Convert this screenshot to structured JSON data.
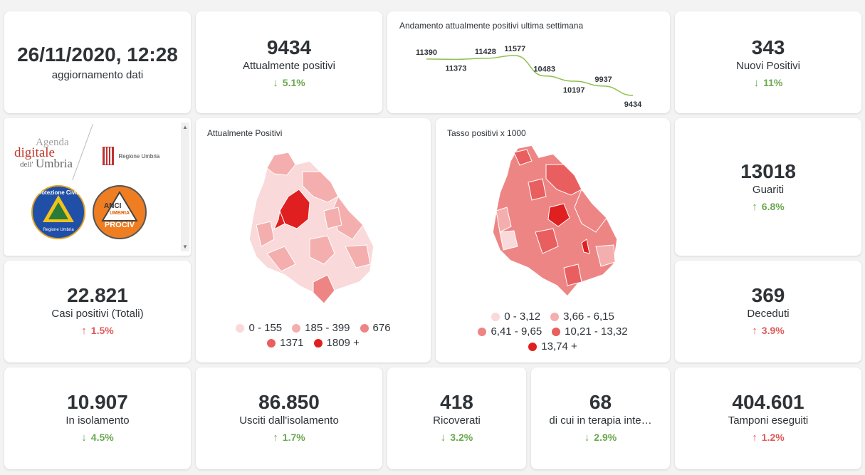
{
  "date_card": {
    "datetime": "26/11/2020, 12:28",
    "label": "aggiornamento dati"
  },
  "kpis": {
    "attualmente_positivi": {
      "value": "9434",
      "label": "Attualmente positivi",
      "delta": "5.1%",
      "arrow": "↓"
    },
    "nuovi_positivi": {
      "value": "343",
      "label": "Nuovi Positivi",
      "delta": "11%",
      "arrow": "↓"
    },
    "guariti": {
      "value": "13018",
      "label": "Guariti",
      "delta": "6.8%",
      "arrow": "↑"
    },
    "casi_totali": {
      "value": "22.821",
      "label": "Casi positivi (Totali)",
      "delta": "1.5%",
      "arrow": "↑"
    },
    "deceduti": {
      "value": "369",
      "label": "Deceduti",
      "delta": "3.9%",
      "arrow": "↑"
    },
    "isolamento": {
      "value": "10.907",
      "label": "In isolamento",
      "delta": "4.5%",
      "arrow": "↓"
    },
    "usciti": {
      "value": "86.850",
      "label": "Usciti dall'isolamento",
      "delta": "1.7%",
      "arrow": "↑"
    },
    "ricoverati": {
      "value": "418",
      "label": "Ricoverati",
      "delta": "3.2%",
      "arrow": "↓"
    },
    "terapia": {
      "value": "68",
      "label": "di cui in terapia inte…",
      "delta": "2.9%",
      "arrow": "↓"
    },
    "tamponi": {
      "value": "404.601",
      "label": "Tamponi eseguiti",
      "delta": "1.2%",
      "arrow": "↑"
    }
  },
  "trend": {
    "title": "Andamento attualmente positivi ultima settimana",
    "values": [
      11390,
      11373,
      11428,
      11577,
      10483,
      10197,
      9937,
      9434
    ],
    "labels": [
      "11390",
      "11373",
      "11428",
      "11577",
      "10483",
      "10197",
      "9937",
      "9434"
    ],
    "color": "#8fc04f"
  },
  "logos": {
    "agenda_line1": "Agenda",
    "agenda_line2": "digitale",
    "agenda_line3_small": "dell'",
    "agenda_line3": "Umbria",
    "regione": "Regione Umbria",
    "protezione": "Protezione Civile",
    "protezione_sub": "Regione Umbria",
    "anci_top": "ANCI",
    "anci_mid": "UMBRIA",
    "anci_bottom": "PROCIV"
  },
  "map_positivi": {
    "title": "Attualmente Positivi",
    "legend": [
      {
        "label": "0 - 155",
        "color": "#f9d9d9"
      },
      {
        "label": "185 - 399",
        "color": "#f4aeae"
      },
      {
        "label": "676",
        "color": "#ee8585"
      },
      {
        "label": "1371",
        "color": "#e95f5f"
      },
      {
        "label": "1809 +",
        "color": "#e02020"
      }
    ]
  },
  "map_tasso": {
    "title": "Tasso positivi x 1000",
    "legend": [
      {
        "label": "0 - 3,12",
        "color": "#f9d9d9"
      },
      {
        "label": "3,66 - 6,15",
        "color": "#f4aeae"
      },
      {
        "label": "6,41 - 9,65",
        "color": "#ee8585"
      },
      {
        "label": "10,21 - 13,32",
        "color": "#e95f5f"
      },
      {
        "label": "13,74 +",
        "color": "#e02020"
      }
    ]
  },
  "colors": {
    "down": "#6aa84f",
    "up": "#e05a5a"
  }
}
